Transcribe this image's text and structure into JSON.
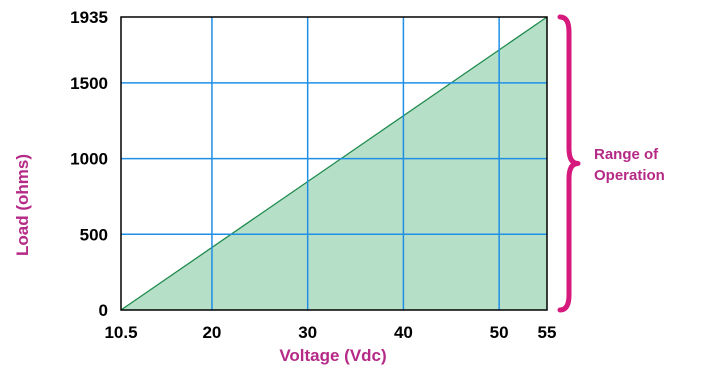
{
  "colors": {
    "grid": "#1f8fe6",
    "area_fill": "#b6dfc8",
    "area_line": "#1e8a4c",
    "axis_label": "#b52a86",
    "brace": "#d6197c",
    "frame": "#000000"
  },
  "chart_data": {
    "type": "area",
    "title": "",
    "xlabel": "Voltage (Vdc)",
    "ylabel": "Load (ohms)",
    "xlim": [
      10.5,
      55
    ],
    "ylim": [
      0,
      1935
    ],
    "x_ticks": [
      10.5,
      20,
      30,
      40,
      50,
      55
    ],
    "x_tick_labels": [
      "10.5",
      "20",
      "30",
      "40",
      "50",
      "55"
    ],
    "y_ticks": [
      0,
      500,
      1000,
      1500,
      1935
    ],
    "y_tick_labels": [
      "0",
      "500",
      "1000",
      "1500",
      "1935"
    ],
    "grid": true,
    "series": [
      {
        "x": [
          10.5,
          55
        ],
        "y": [
          0,
          1935
        ]
      }
    ],
    "annotation": {
      "text_lines": [
        "Range of",
        "Operation"
      ],
      "y_range": [
        0,
        1935
      ]
    }
  }
}
